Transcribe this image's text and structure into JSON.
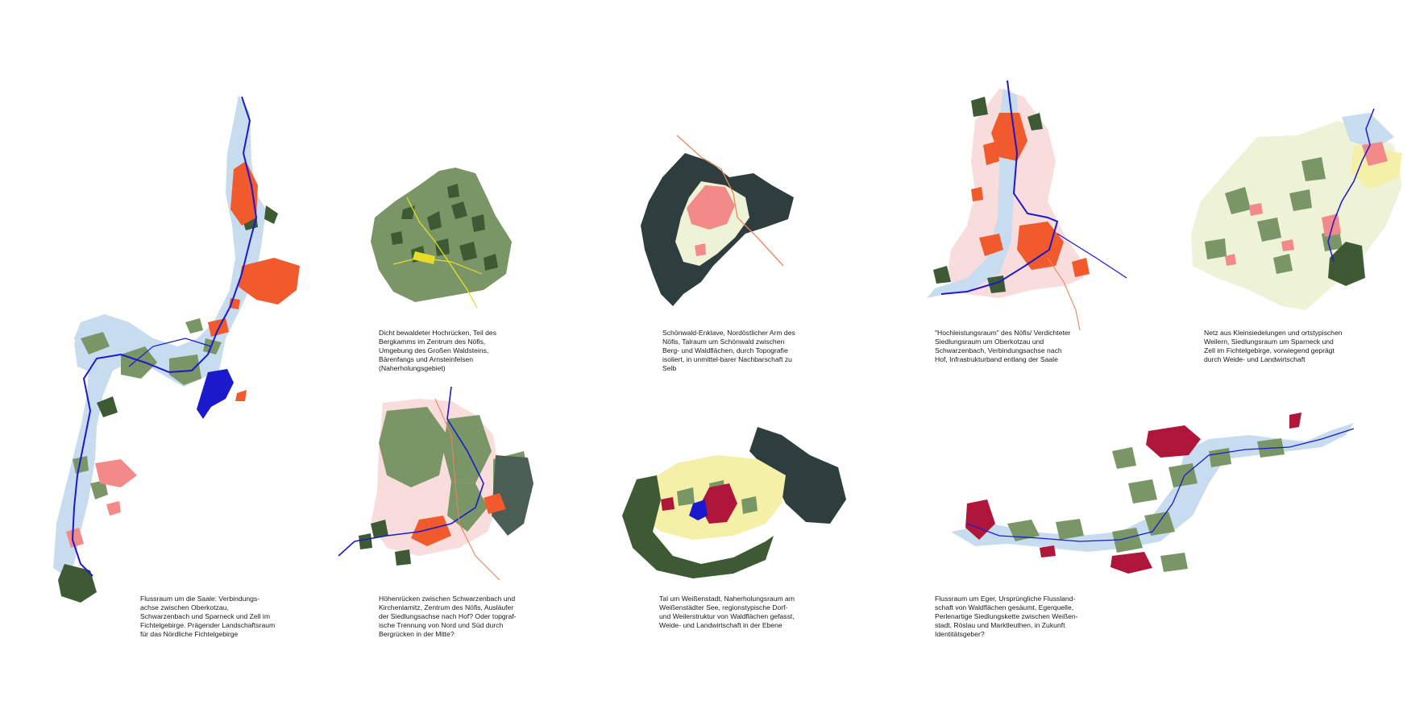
{
  "colors": {
    "forest_dark": "#2e3d3d",
    "forest": "#7a9566",
    "forest_deep": "#3e5a34",
    "river": "#1a1acc",
    "flood": "#c7dcef",
    "settlement": "#f05a2c",
    "settlement_light": "#f28a8a",
    "settlement_red": "#b0163a",
    "pink_zone": "#f9dcdc",
    "yellow_zone": "#f5f0a8",
    "cream_zone": "#eef2d6",
    "road_yellow": "#e7dc2a",
    "road_orange": "#e8865f"
  },
  "captions": {
    "saale": "Flussraum um die Saale: Verbindungs-achse zwischen Oberkotzau, Schwarzenbach und Sparneck und Zell im Fichtelgebirge. Prägender Landschaftsraum für das Nördliche Fichtelgebirge",
    "hochruecken": "Dicht bewaldeter Hochrücken, Teil des Bergkamms im Zentrum des Nöfis, Umgebung des Großen Waldsteins, Bärenfangs und Arnsteinfelsen (Naherholungsgebiet)",
    "schoenwald": "Schönwald-Enklave, Nordöstlicher Arm des Nöfis, Talraum um Schönwald zwischen Berg- und Waldflächen, durch Topografie isoliert, in unmittel-barer Nachbarschaft zu Selb",
    "hochleistung": "\"Hochleistungsraum\" des Nöfis/ Verdichteter Siedlungsraum um Oberkotzau und Schwarzenbach, Verbindungsachse nach Hof, Infrastrukturband entlang der Saale",
    "kleinsiedlungen": "Netz aus Kleinsiedelungen und ortstypischen Weilern, Siedlungsraum um Sparneck und Zell im Fichtelgebirge, vorwiegend geprägt durch Weide- und Landwirtschaft",
    "hoehenruecken": "Höhenrücken zwischen Schwarzenbach und Kirchenlamitz, Zentrum des Nöfis, Ausläufer der Siedlungsachse nach Hof? Oder topgraf-ische Trennung von Nord und Süd durch Bergrücken in der Mitte?",
    "weissenstadt": "Tal um Weißenstadt, Naherholungsraum am Weißenstädter See, regionstypische Dorf- und Weilerstruktur von Waldflächen gefasst, Weide- und Landwirtschaft in der Ebene",
    "eger": "Flussraum um Eger, Ursprüngliche Flussland-schaft von Waldflächen gesäumt, Egerquelle, Perlenartige Siedlungskette zwischen Weißen-stadt, Röslau und Marktleuthen, in Zukunft Identitätsgeber?"
  }
}
